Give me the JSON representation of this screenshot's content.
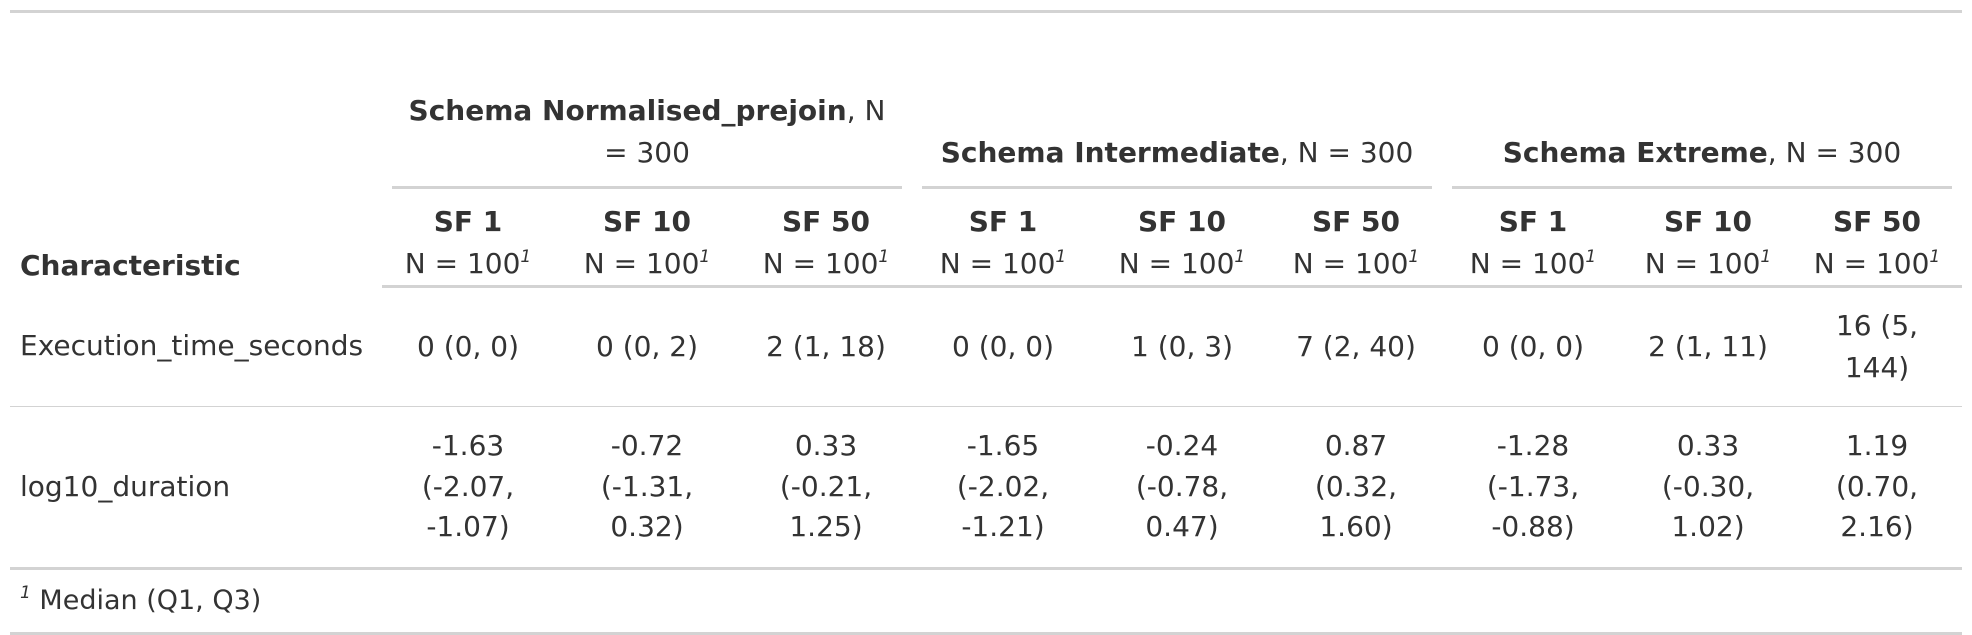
{
  "table": {
    "characteristic_header": "Characteristic",
    "spanners": [
      {
        "bold": "Schema Normalised_prejoin",
        "rest": ", N = 300"
      },
      {
        "bold": "Schema Intermediate",
        "rest": ", N = 300"
      },
      {
        "bold": "Schema Extreme",
        "rest": ", N = 300"
      }
    ],
    "columns": [
      {
        "label": "SF 1",
        "n": "N = 100"
      },
      {
        "label": "SF 10",
        "n": "N = 100"
      },
      {
        "label": "SF 50",
        "n": "N = 100"
      },
      {
        "label": "SF 1",
        "n": "N = 100"
      },
      {
        "label": "SF 10",
        "n": "N = 100"
      },
      {
        "label": "SF 50",
        "n": "N = 100"
      },
      {
        "label": "SF 1",
        "n": "N = 100"
      },
      {
        "label": "SF 10",
        "n": "N = 100"
      },
      {
        "label": "SF 50",
        "n": "N = 100"
      }
    ],
    "footnote_mark": "1",
    "rows": [
      {
        "label": "Execution_time_seconds",
        "values": [
          "0 (0, 0)",
          "0 (0, 2)",
          "2 (1, 18)",
          "0 (0, 0)",
          "1 (0, 3)",
          "7 (2, 40)",
          "0 (0, 0)",
          "2 (1, 11)",
          "16 (5, 144)"
        ]
      },
      {
        "label": "log10_duration",
        "values": [
          "-1.63 (-2.07, -1.07)",
          "-0.72 (-1.31, 0.32)",
          "0.33 (-0.21, 1.25)",
          "-1.65 (-2.02, -1.21)",
          "-0.24 (-0.78, 0.47)",
          "0.87 (0.32, 1.60)",
          "-1.28 (-1.73, -0.88)",
          "0.33 (-0.30, 1.02)",
          "1.19 (0.70, 2.16)"
        ]
      }
    ],
    "footnote": {
      "mark": "1",
      "text": "Median (Q1, Q3)"
    }
  }
}
